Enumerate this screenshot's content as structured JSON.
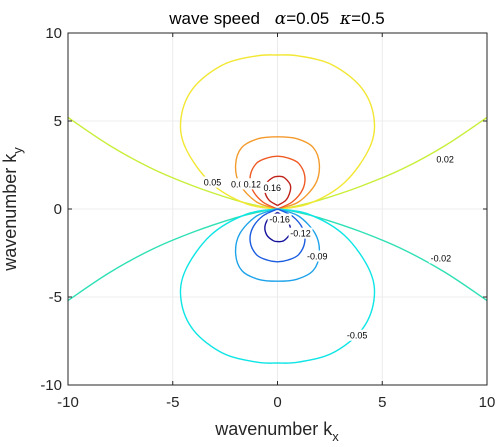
{
  "chart_data": {
    "type": "contour",
    "title": {
      "text": "wave speed",
      "params": [
        {
          "symbol": "α",
          "value": "=0.05"
        },
        {
          "symbol": "κ",
          "value": "=0.5"
        }
      ]
    },
    "xlabel": {
      "main": "wavenumber k",
      "sub": "x"
    },
    "ylabel": {
      "main": "wavenumber k",
      "sub": "y"
    },
    "xlim": [
      -10,
      10
    ],
    "ylim": [
      -10,
      10
    ],
    "xticks": [
      -10,
      -5,
      0,
      5,
      10
    ],
    "yticks": [
      -10,
      -5,
      0,
      5,
      10
    ],
    "grid": true,
    "levels": [
      {
        "value": 0.02,
        "color": "#c8ef3a",
        "label": "0.02",
        "curves": [
          [
            [
              -10,
              5.2
            ],
            [
              -8,
              3.6
            ],
            [
              -6,
              2.3
            ],
            [
              -4,
              1.3
            ],
            [
              -2,
              0.5
            ],
            [
              -1,
              0.2
            ],
            [
              0,
              0
            ],
            [
              1,
              0.2
            ],
            [
              2,
              0.5
            ],
            [
              4,
              1.3
            ],
            [
              6,
              2.3
            ],
            [
              8,
              3.6
            ],
            [
              10,
              5.2
            ]
          ]
        ],
        "label_at": [
          8,
          2.8
        ]
      },
      {
        "value": 0.05,
        "color": "#f2e733",
        "label": "0.05",
        "curves": [
          [
            [
              0,
              0
            ],
            [
              -1.5,
              0.3
            ],
            [
              -3.2,
              1.5
            ],
            [
              -4.4,
              3.5
            ],
            [
              -4.6,
              5.2
            ],
            [
              -4.0,
              6.9
            ],
            [
              -2.6,
              8.2
            ],
            [
              -1.0,
              8.7
            ],
            [
              0,
              8.75
            ],
            [
              1.0,
              8.7
            ],
            [
              2.6,
              8.2
            ],
            [
              4.0,
              6.9
            ],
            [
              4.6,
              5.2
            ],
            [
              4.4,
              3.5
            ],
            [
              3.2,
              1.5
            ],
            [
              1.5,
              0.3
            ],
            [
              0,
              0
            ]
          ]
        ],
        "label_at": [
          -3.1,
          1.5
        ]
      },
      {
        "value": 0.09,
        "color": "#f49b2d",
        "label": "0.09",
        "curves": [
          [
            [
              0,
              0
            ],
            [
              -1.0,
              0.4
            ],
            [
              -1.8,
              1.4
            ],
            [
              -2.0,
              2.5
            ],
            [
              -1.7,
              3.5
            ],
            [
              -0.9,
              4.0
            ],
            [
              0,
              4.1
            ],
            [
              0.9,
              4.0
            ],
            [
              1.7,
              3.5
            ],
            [
              2.0,
              2.5
            ],
            [
              1.8,
              1.4
            ],
            [
              1.0,
              0.4
            ],
            [
              0,
              0
            ]
          ]
        ],
        "label_at": [
          -1.8,
          1.4
        ]
      },
      {
        "value": 0.12,
        "color": "#ef5a24",
        "label": "0.12",
        "curves": [
          [
            [
              0,
              0
            ],
            [
              -0.7,
              0.4
            ],
            [
              -1.2,
              1.1
            ],
            [
              -1.3,
              1.9
            ],
            [
              -1.0,
              2.6
            ],
            [
              -0.5,
              2.9
            ],
            [
              0,
              3.0
            ],
            [
              0.5,
              2.9
            ],
            [
              1.0,
              2.6
            ],
            [
              1.3,
              1.9
            ],
            [
              1.2,
              1.1
            ],
            [
              0.7,
              0.4
            ],
            [
              0,
              0
            ]
          ]
        ],
        "label_at": [
          -1.2,
          1.4
        ]
      },
      {
        "value": 0.16,
        "color": "#c02118",
        "label": "0.16",
        "curves": [
          [
            [
              0,
              0.2
            ],
            [
              -0.4,
              0.5
            ],
            [
              -0.6,
              1.0
            ],
            [
              -0.5,
              1.5
            ],
            [
              -0.2,
              1.8
            ],
            [
              0,
              1.85
            ],
            [
              0.3,
              1.8
            ],
            [
              0.6,
              1.4
            ],
            [
              0.6,
              1.0
            ],
            [
              0.4,
              0.5
            ],
            [
              0,
              0.2
            ]
          ]
        ],
        "label_at": [
          -0.25,
          1.2
        ]
      },
      {
        "value": -0.02,
        "color": "#2fe0b5",
        "label": "-0.02",
        "curves": [
          [
            [
              -10,
              -5.2
            ],
            [
              -8,
              -3.6
            ],
            [
              -6,
              -2.3
            ],
            [
              -4,
              -1.3
            ],
            [
              -2,
              -0.5
            ],
            [
              -1,
              -0.2
            ],
            [
              0,
              0
            ],
            [
              1,
              -0.2
            ],
            [
              2,
              -0.5
            ],
            [
              4,
              -1.3
            ],
            [
              6,
              -2.3
            ],
            [
              8,
              -3.6
            ],
            [
              10,
              -5.2
            ]
          ]
        ],
        "label_at": [
          7.8,
          -2.8
        ]
      },
      {
        "value": -0.05,
        "color": "#0ee5e5",
        "label": "-0.05",
        "curves": [
          [
            [
              0,
              0
            ],
            [
              -1.5,
              -0.3
            ],
            [
              -3.2,
              -1.5
            ],
            [
              -4.4,
              -3.5
            ],
            [
              -4.6,
              -5.2
            ],
            [
              -4.0,
              -6.9
            ],
            [
              -2.6,
              -8.2
            ],
            [
              -1.0,
              -8.7
            ],
            [
              0,
              -8.75
            ],
            [
              1.0,
              -8.7
            ],
            [
              2.6,
              -8.2
            ],
            [
              4.0,
              -6.9
            ],
            [
              4.6,
              -5.2
            ],
            [
              4.4,
              -3.5
            ],
            [
              3.2,
              -1.5
            ],
            [
              1.5,
              -0.3
            ],
            [
              0,
              0
            ]
          ]
        ],
        "label_at": [
          3.8,
          -7.2
        ]
      },
      {
        "value": -0.09,
        "color": "#1ea3ea",
        "label": "-0.09",
        "curves": [
          [
            [
              0,
              0
            ],
            [
              -1.0,
              -0.4
            ],
            [
              -1.8,
              -1.4
            ],
            [
              -2.0,
              -2.5
            ],
            [
              -1.7,
              -3.5
            ],
            [
              -0.9,
              -4.0
            ],
            [
              0,
              -4.1
            ],
            [
              0.9,
              -4.0
            ],
            [
              1.7,
              -3.5
            ],
            [
              2.0,
              -2.5
            ],
            [
              1.8,
              -1.4
            ],
            [
              1.0,
              -0.4
            ],
            [
              0,
              0
            ]
          ]
        ],
        "label_at": [
          1.9,
          -2.7
        ]
      },
      {
        "value": -0.12,
        "color": "#1a5ce0",
        "label": "-0.12",
        "curves": [
          [
            [
              0,
              0
            ],
            [
              -0.7,
              -0.4
            ],
            [
              -1.2,
              -1.1
            ],
            [
              -1.3,
              -1.9
            ],
            [
              -1.0,
              -2.6
            ],
            [
              -0.5,
              -2.9
            ],
            [
              0,
              -3.0
            ],
            [
              0.5,
              -2.9
            ],
            [
              1.0,
              -2.6
            ],
            [
              1.3,
              -1.9
            ],
            [
              1.2,
              -1.1
            ],
            [
              0.7,
              -0.4
            ],
            [
              0,
              0
            ]
          ]
        ],
        "label_at": [
          1.1,
          -1.4
        ]
      },
      {
        "value": -0.16,
        "color": "#14129c",
        "label": "-0.16",
        "curves": [
          [
            [
              0,
              -0.2
            ],
            [
              -0.4,
              -0.5
            ],
            [
              -0.6,
              -1.0
            ],
            [
              -0.5,
              -1.5
            ],
            [
              -0.2,
              -1.8
            ],
            [
              0,
              -1.85
            ],
            [
              0.3,
              -1.8
            ],
            [
              0.6,
              -1.4
            ],
            [
              0.6,
              -1.0
            ],
            [
              0.4,
              -0.5
            ],
            [
              0,
              -0.2
            ]
          ]
        ],
        "label_at": [
          0.1,
          -0.6
        ]
      }
    ]
  }
}
